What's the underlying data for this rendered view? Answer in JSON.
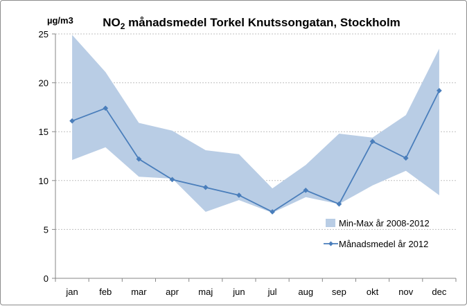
{
  "chart_data": {
    "type": "line",
    "title_main": "NO",
    "title_sub": "2",
    "title_rest": " månadsmedel Torkel Knutssongatan, Stockholm",
    "ylabel": "µg/m3",
    "xlabel": "",
    "categories": [
      "jan",
      "feb",
      "mar",
      "apr",
      "maj",
      "jun",
      "jul",
      "aug",
      "sep",
      "okt",
      "nov",
      "dec"
    ],
    "ylim": [
      0,
      25
    ],
    "yticks": [
      0,
      5,
      10,
      15,
      20,
      25
    ],
    "grid": true,
    "legend_position": "bottom-right",
    "series": [
      {
        "name": "Min-Max år 2008-2012",
        "kind": "range-area",
        "color": "#b9cde5",
        "min": [
          12.1,
          13.4,
          10.4,
          10.2,
          6.8,
          8.0,
          6.7,
          8.3,
          7.6,
          9.5,
          11.0,
          8.5
        ],
        "max": [
          24.9,
          21.1,
          15.9,
          15.1,
          13.1,
          12.7,
          9.2,
          11.6,
          14.8,
          14.4,
          16.7,
          23.5
        ]
      },
      {
        "name": "Månadsmedel år 2012",
        "kind": "line",
        "color": "#4a7ebb",
        "marker": "diamond",
        "values": [
          16.1,
          17.4,
          12.2,
          10.1,
          9.3,
          8.5,
          6.8,
          9.0,
          7.6,
          14.0,
          12.3,
          19.2
        ]
      }
    ]
  }
}
